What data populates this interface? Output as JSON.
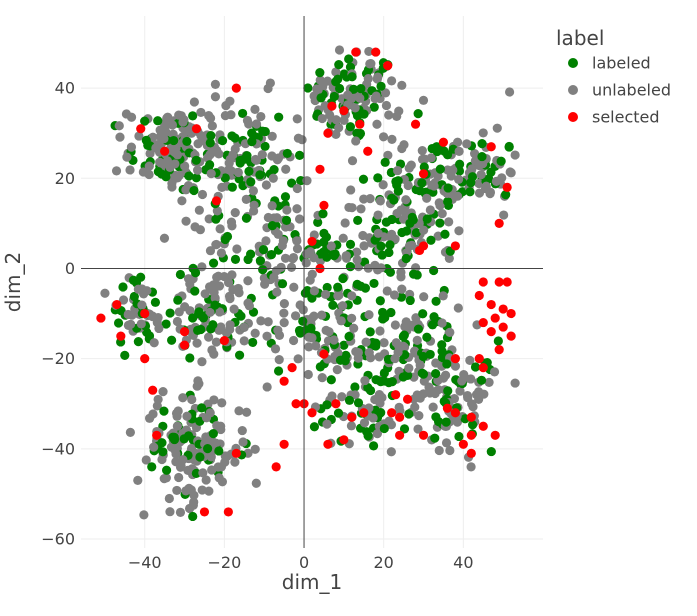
{
  "chart_data": {
    "type": "scatter",
    "title": "",
    "xlabel": "dim_1",
    "ylabel": "dim_2",
    "xlim": [
      -56,
      60
    ],
    "ylim": [
      -62,
      56
    ],
    "x_ticks": [
      -40,
      -20,
      0,
      20,
      40
    ],
    "y_ticks": [
      -60,
      -40,
      -20,
      0,
      20,
      40
    ],
    "x_tick_labels": [
      "−40",
      "−20",
      "0",
      "20",
      "40"
    ],
    "y_tick_labels": [
      "−60",
      "−40",
      "−20",
      "0",
      "20",
      "40"
    ],
    "grid": true,
    "zero_lines": true,
    "legend": {
      "title": "label",
      "placement": "top-right"
    },
    "series": [
      {
        "name": "labeled",
        "color": "#008000",
        "clusters": [
          {
            "cx": 12,
            "cy": 38,
            "sx": 6,
            "sy": 5,
            "n": 50
          },
          {
            "cx": -32,
            "cy": 26,
            "sx": 6,
            "sy": 5,
            "n": 40
          },
          {
            "cx": -15,
            "cy": 24,
            "sx": 6,
            "sy": 7,
            "n": 45
          },
          {
            "cx": 30,
            "cy": 18,
            "sx": 7,
            "sy": 6,
            "n": 45
          },
          {
            "cx": 45,
            "cy": 22,
            "sx": 4,
            "sy": 4,
            "n": 25
          },
          {
            "cx": -8,
            "cy": 5,
            "sx": 8,
            "sy": 6,
            "n": 40
          },
          {
            "cx": 20,
            "cy": 5,
            "sx": 7,
            "sy": 6,
            "n": 45
          },
          {
            "cx": -42,
            "cy": -10,
            "sx": 4,
            "sy": 4,
            "n": 25
          },
          {
            "cx": -22,
            "cy": -10,
            "sx": 6,
            "sy": 5,
            "n": 35
          },
          {
            "cx": 5,
            "cy": -12,
            "sx": 7,
            "sy": 6,
            "n": 45
          },
          {
            "cx": 25,
            "cy": -18,
            "sx": 7,
            "sy": 6,
            "n": 45
          },
          {
            "cx": 38,
            "cy": -28,
            "sx": 5,
            "sy": 6,
            "n": 35
          },
          {
            "cx": -28,
            "cy": -40,
            "sx": 7,
            "sy": 6,
            "n": 40
          },
          {
            "cx": 15,
            "cy": -30,
            "sx": 6,
            "sy": 5,
            "n": 30
          }
        ]
      },
      {
        "name": "unlabeled",
        "color": "#808080",
        "clusters": [
          {
            "cx": 12,
            "cy": 38,
            "sx": 6,
            "sy": 5,
            "n": 70
          },
          {
            "cx": -32,
            "cy": 26,
            "sx": 6,
            "sy": 5,
            "n": 110
          },
          {
            "cx": -15,
            "cy": 24,
            "sx": 7,
            "sy": 7,
            "n": 70
          },
          {
            "cx": 30,
            "cy": 18,
            "sx": 7,
            "sy": 6,
            "n": 60
          },
          {
            "cx": 45,
            "cy": 22,
            "sx": 4,
            "sy": 5,
            "n": 40
          },
          {
            "cx": -8,
            "cy": 5,
            "sx": 8,
            "sy": 6,
            "n": 60
          },
          {
            "cx": 20,
            "cy": 5,
            "sx": 7,
            "sy": 6,
            "n": 60
          },
          {
            "cx": -42,
            "cy": -10,
            "sx": 4,
            "sy": 4,
            "n": 30
          },
          {
            "cx": -22,
            "cy": -10,
            "sx": 6,
            "sy": 5,
            "n": 70
          },
          {
            "cx": 5,
            "cy": -12,
            "sx": 7,
            "sy": 6,
            "n": 60
          },
          {
            "cx": 25,
            "cy": -18,
            "sx": 7,
            "sy": 6,
            "n": 55
          },
          {
            "cx": 38,
            "cy": -28,
            "sx": 5,
            "sy": 6,
            "n": 70
          },
          {
            "cx": -28,
            "cy": -40,
            "sx": 7,
            "sy": 6,
            "n": 130
          },
          {
            "cx": 15,
            "cy": -30,
            "sx": 6,
            "sy": 5,
            "n": 35
          }
        ]
      },
      {
        "name": "selected",
        "color": "#ff0000",
        "points": [
          [
            13,
            48
          ],
          [
            18,
            48
          ],
          [
            21,
            45
          ],
          [
            -17,
            40
          ],
          [
            -27,
            31
          ],
          [
            -41,
            31
          ],
          [
            16,
            26
          ],
          [
            7,
            36
          ],
          [
            28,
            32
          ],
          [
            47,
            27
          ],
          [
            35,
            28
          ],
          [
            10,
            35
          ],
          [
            6,
            30
          ],
          [
            4,
            22
          ],
          [
            -22,
            15
          ],
          [
            51,
            18
          ],
          [
            30,
            21
          ],
          [
            49,
            10
          ],
          [
            5,
            14
          ],
          [
            2,
            6
          ],
          [
            4,
            0
          ],
          [
            38,
            5
          ],
          [
            30,
            5
          ],
          [
            29,
            4
          ],
          [
            45,
            -3
          ],
          [
            49,
            -3
          ],
          [
            51,
            -3
          ],
          [
            44,
            -6
          ],
          [
            47,
            -8
          ],
          [
            50,
            -9
          ],
          [
            52,
            -10
          ],
          [
            48,
            -11
          ],
          [
            45,
            -12
          ],
          [
            50,
            -13
          ],
          [
            47,
            -14
          ],
          [
            52,
            -15
          ],
          [
            49,
            -18
          ],
          [
            44,
            -20
          ],
          [
            38,
            -20
          ],
          [
            -51,
            -11
          ],
          [
            -47,
            -8
          ],
          [
            -46,
            -15
          ],
          [
            -40,
            -20
          ],
          [
            -40,
            -10
          ],
          [
            -30,
            -14
          ],
          [
            -30,
            -17
          ],
          [
            5,
            -19
          ],
          [
            -3,
            -22
          ],
          [
            -5,
            -25
          ],
          [
            -2,
            -30
          ],
          [
            0,
            -30
          ],
          [
            2,
            -32
          ],
          [
            8,
            -30
          ],
          [
            12,
            -33
          ],
          [
            15,
            -32
          ],
          [
            22,
            -32
          ],
          [
            24,
            -33
          ],
          [
            23,
            -28
          ],
          [
            26,
            -29
          ],
          [
            36,
            -31
          ],
          [
            38,
            -32
          ],
          [
            42,
            -33
          ],
          [
            45,
            -35
          ],
          [
            48,
            -37
          ],
          [
            42,
            -37
          ],
          [
            40,
            -39
          ],
          [
            42,
            -41
          ],
          [
            30,
            -37
          ],
          [
            24,
            -37
          ],
          [
            10,
            -38
          ],
          [
            6,
            -39
          ],
          [
            -5,
            -39
          ],
          [
            -17,
            -41
          ],
          [
            -7,
            -44
          ],
          [
            -25,
            -54
          ],
          [
            -19,
            -54
          ],
          [
            -37,
            -37
          ],
          [
            -38,
            -27
          ],
          [
            -20,
            -16
          ],
          [
            45,
            -22
          ],
          [
            -35,
            26
          ],
          [
            14,
            32
          ]
        ]
      }
    ]
  }
}
